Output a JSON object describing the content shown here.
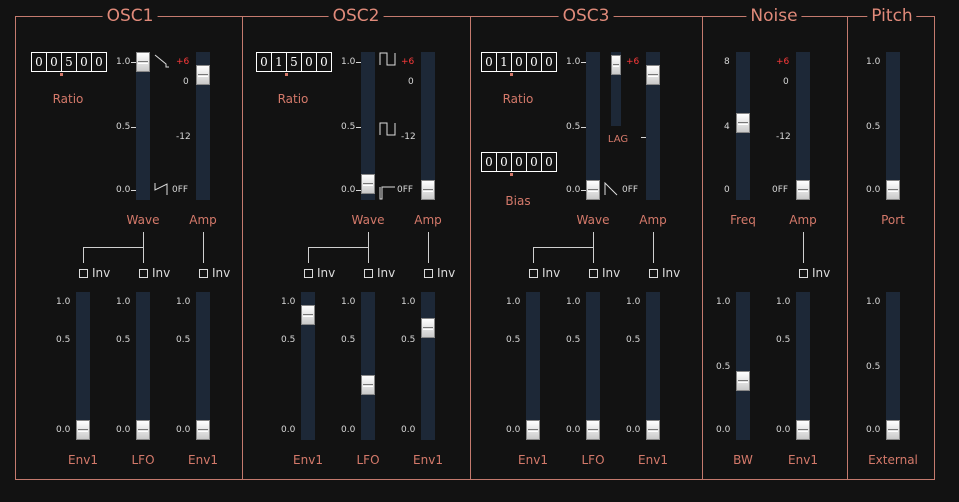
{
  "sections": {
    "osc1": "OSC1",
    "osc2": "OSC2",
    "osc3": "OSC3",
    "noise": "Noise",
    "pitch": "Pitch"
  },
  "ticks": {
    "one": "1.0",
    "half": "0.5",
    "zero": "0.0",
    "plus6": "+6",
    "amp0": "0",
    "minus12": "-12",
    "off": "0FF",
    "freq8": "8",
    "freq4": "4",
    "freq0": "0"
  },
  "labels": {
    "ratio": "Ratio",
    "bias": "Bias",
    "wave": "Wave",
    "amp": "Amp",
    "lag": "LAG",
    "freq": "Freq",
    "port": "Port",
    "inv": "Inv",
    "env1": "Env1",
    "lfo": "LFO",
    "bw": "BW",
    "external": "External"
  },
  "osc1": {
    "ratio_digits": [
      "0",
      "0",
      "5",
      "0",
      "0"
    ],
    "wave": 1.0,
    "amp": 0.9,
    "mod": [
      0.0,
      0.0,
      0.0
    ]
  },
  "osc2": {
    "ratio_digits": [
      "0",
      "1",
      "5",
      "0",
      "0"
    ],
    "wave": 0.05,
    "amp": 0.0,
    "mod": [
      0.9,
      0.35,
      0.8
    ]
  },
  "osc3": {
    "ratio_digits": [
      "0",
      "1",
      "0",
      "0",
      "0"
    ],
    "bias_digits": [
      "0",
      "0",
      "0",
      "0",
      "0"
    ],
    "wave": 0.0,
    "lag": 0.95,
    "amp": 0.9,
    "mod": [
      0.0,
      0.0,
      0.0
    ]
  },
  "noise": {
    "freq": 4.2,
    "amp": 0.0,
    "bw": 0.38,
    "mod": 0.0
  },
  "pitch": {
    "port": 0.0,
    "external": 0.0
  }
}
